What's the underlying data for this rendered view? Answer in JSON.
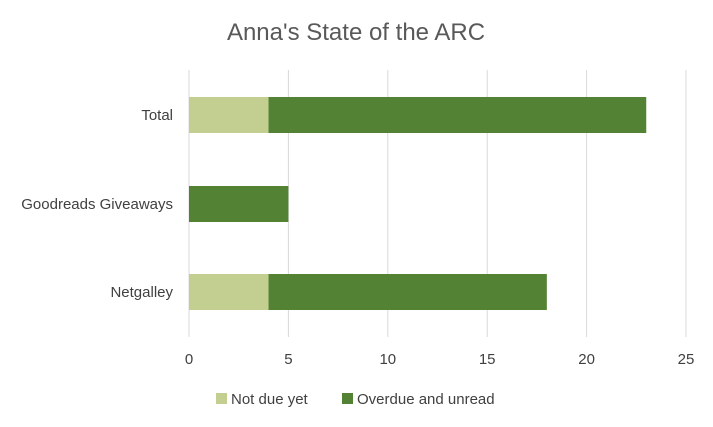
{
  "chart_data": {
    "type": "bar",
    "orientation": "horizontal",
    "stacked": true,
    "title": "Anna's State of the ARC",
    "categories": [
      "Total",
      "Goodreads Giveaways",
      "Netgalley"
    ],
    "series": [
      {
        "name": "Not due yet",
        "values": [
          4,
          0,
          4
        ],
        "color": "#c3cf91"
      },
      {
        "name": "Overdue and unread",
        "values": [
          19,
          5,
          14
        ],
        "color": "#548235"
      }
    ],
    "xlim": [
      0,
      25
    ],
    "xticks": [
      0,
      5,
      10,
      15,
      20,
      25
    ],
    "grid": true,
    "legend_position": "bottom"
  }
}
